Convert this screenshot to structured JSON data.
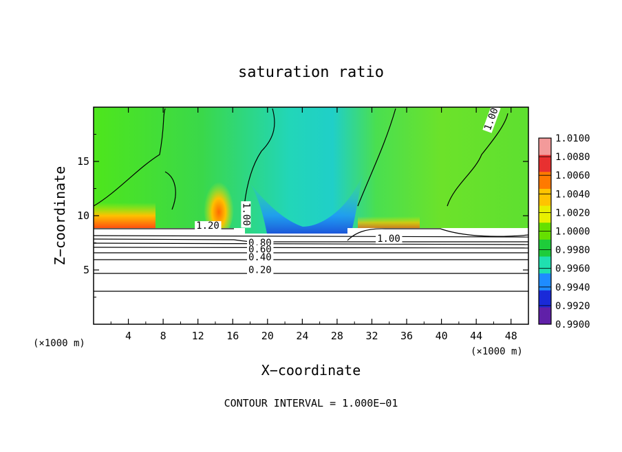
{
  "chart_data": {
    "type": "heatmap",
    "title": "saturation ratio",
    "xlabel": "X−coordinate",
    "ylabel": "Z−coordinate",
    "x_unit": "(×1000 m)",
    "y_unit": "(×1000 m)",
    "xlim": [
      0,
      50
    ],
    "ylim": [
      0,
      20
    ],
    "xticks": [
      4,
      8,
      12,
      16,
      20,
      24,
      28,
      32,
      36,
      40,
      44,
      48
    ],
    "yticks": [
      5,
      10,
      15
    ],
    "grid": false,
    "colorbar": {
      "placement": "right",
      "ticks": [
        "1.0100",
        "1.0080",
        "1.0060",
        "1.0040",
        "1.0020",
        "1.0000",
        "0.9980",
        "0.9960",
        "0.9940",
        "0.9920",
        "0.9900"
      ],
      "colors": [
        "#f39a9a",
        "#e83030",
        "#ff7a00",
        "#ffc400",
        "#e8f000",
        "#66e000",
        "#1ecc3a",
        "#1fe0b0",
        "#1e8cff",
        "#1a2ad8",
        "#6020a8"
      ]
    },
    "contour_labels": [
      {
        "text": "1.20",
        "x": 11.8,
        "z": 8.8
      },
      {
        "text": "1.00",
        "x": 17.2,
        "z": 11.2
      },
      {
        "text": "1.00",
        "x": 32.6,
        "z": 7.6
      },
      {
        "text": "1.00",
        "x": 45.6,
        "z": 17.8
      },
      {
        "text": "0.80",
        "x": 17.8,
        "z": 7.2
      },
      {
        "text": "0.60",
        "x": 17.8,
        "z": 6.6
      },
      {
        "text": "0.40",
        "x": 17.8,
        "z": 5.9
      },
      {
        "text": "0.20",
        "x": 17.8,
        "z": 4.7
      }
    ],
    "footer": "CONTOUR INTERVAL = 1.000E−01"
  }
}
